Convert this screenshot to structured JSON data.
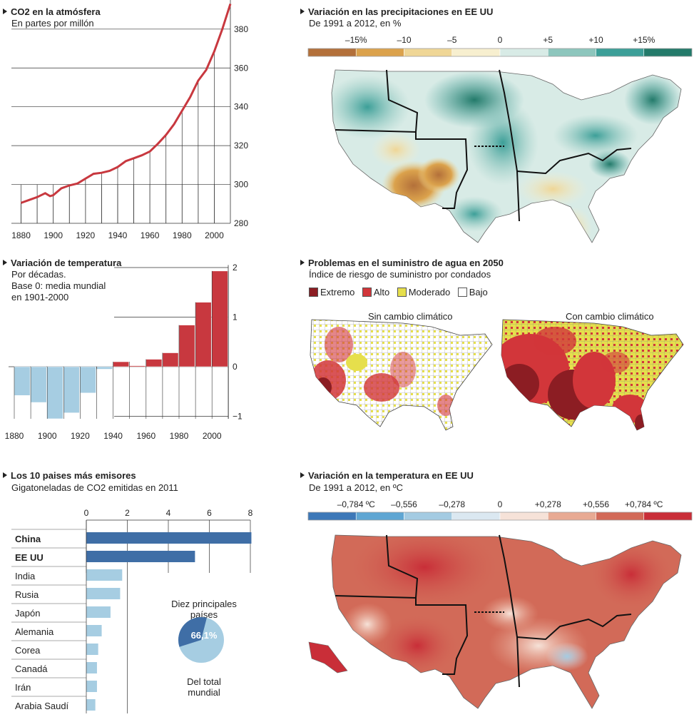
{
  "co2": {
    "title": "CO2 en la atmósfera",
    "subtitle": "En partes por millón",
    "chart_data": {
      "type": "line",
      "x": [
        1880,
        1885,
        1890,
        1895,
        1898,
        1900,
        1905,
        1910,
        1915,
        1920,
        1925,
        1930,
        1935,
        1940,
        1945,
        1950,
        1955,
        1960,
        1965,
        1970,
        1975,
        1980,
        1985,
        1990,
        1995,
        2000,
        2005,
        2010
      ],
      "y": [
        290.5,
        292,
        293.5,
        295.5,
        294,
        294.5,
        298,
        299.5,
        300.5,
        303,
        305.5,
        306,
        307,
        309,
        312,
        313.5,
        315,
        317,
        321,
        325.5,
        331,
        338,
        345,
        353.5,
        359,
        368.5,
        380,
        393
      ],
      "xticks": [
        "1880",
        "1900",
        "1920",
        "1940",
        "1960",
        "1980",
        "2000"
      ],
      "yticks": [
        "280",
        "300",
        "320",
        "340",
        "360",
        "380"
      ],
      "xlim": [
        1874,
        2010
      ],
      "ylim": [
        280,
        395
      ],
      "color": "#c8383f"
    }
  },
  "temp": {
    "title": "Variación de temperatura",
    "subtitle_lines": [
      "Por décadas.",
      "Base 0: media mundial",
      "en 1901-2000"
    ],
    "chart_data": {
      "type": "bar",
      "categories": [
        "1880s",
        "1890s",
        "1900s",
        "1910s",
        "1920s",
        "1930s",
        "1940s",
        "1950s",
        "1960s",
        "1970s",
        "1980s",
        "1990s",
        "2000s"
      ],
      "values": [
        -0.58,
        -0.72,
        -1.05,
        -0.93,
        -0.53,
        -0.05,
        0.1,
        0.02,
        0.15,
        0.28,
        0.84,
        1.3,
        1.93
      ],
      "xticks": [
        "1880",
        "1900",
        "1920",
        "1940",
        "1960",
        "1980",
        "2000"
      ],
      "yticks": [
        "2",
        "1",
        "0",
        "−1"
      ],
      "ylim": [
        -1.1,
        2.1
      ],
      "neg_color": "#a6cde2",
      "pos_color": "#c8383f"
    }
  },
  "emit": {
    "title": "Los 10 paises más emisores",
    "subtitle": "Gigatoneladas de CO2 emitidas en 2011",
    "chart_data": {
      "type": "bar",
      "categories": [
        "China",
        "EE UU",
        "India",
        "Rusia",
        "Japón",
        "Alemania",
        "Corea",
        "Canadá",
        "Irán",
        "Arabia Saudí"
      ],
      "values": [
        8.05,
        5.3,
        1.75,
        1.65,
        1.18,
        0.75,
        0.58,
        0.52,
        0.52,
        0.44
      ],
      "xticks": [
        "0",
        "2",
        "4",
        "6",
        "8"
      ],
      "xlim": [
        0,
        8
      ],
      "highlight": [
        "China",
        "EE UU"
      ],
      "dark": "#3f6ea6",
      "light": "#a6cde2"
    },
    "pie": {
      "label_top_1": "Diez principales",
      "label_top_2": "países",
      "value_label": "66,1%",
      "value": 66.1,
      "label_bot_1": "Del total",
      "label_bot_2": "mundial"
    }
  },
  "precip": {
    "title": "Variación en las precipitaciones en EE UU",
    "subtitle": "De 1991 a 2012, en %",
    "scale_labels": [
      "–15%",
      "–10",
      "–5",
      "0",
      "+5",
      "+10",
      "+15%"
    ],
    "scale_colors": [
      "#b3703a",
      "#dba24c",
      "#efd696",
      "#f7efcf",
      "#d8ebe6",
      "#8dc6bd",
      "#3c9f98",
      "#237a6a"
    ]
  },
  "water": {
    "title": "Problemas en el suministro de agua en 2050",
    "subtitle": "Índice de riesgo de suministro por condados",
    "legend": [
      {
        "label": "Extremo",
        "color": "#8c1d23"
      },
      {
        "label": "Alto",
        "color": "#d2363a"
      },
      {
        "label": "Moderado",
        "color": "#e6df4c"
      },
      {
        "label": "Bajo",
        "color": "#ffffff"
      }
    ],
    "map_left": "Sin cambio climático",
    "map_right": "Con cambio climático"
  },
  "tempus": {
    "title": "Variación en la temperatura en EE UU",
    "subtitle": "De 1991 a 2012, en ºC",
    "scale_labels": [
      "–0,784 ºC",
      "–0,556",
      "–0,278",
      "0",
      "+0,278",
      "+0,556",
      "+0,784 ºC"
    ],
    "scale_colors": [
      "#3d78b8",
      "#5fa6d3",
      "#a4cbe2",
      "#dbe8f1",
      "#f6e2d8",
      "#e8aa93",
      "#d26a58",
      "#c92e38"
    ]
  }
}
